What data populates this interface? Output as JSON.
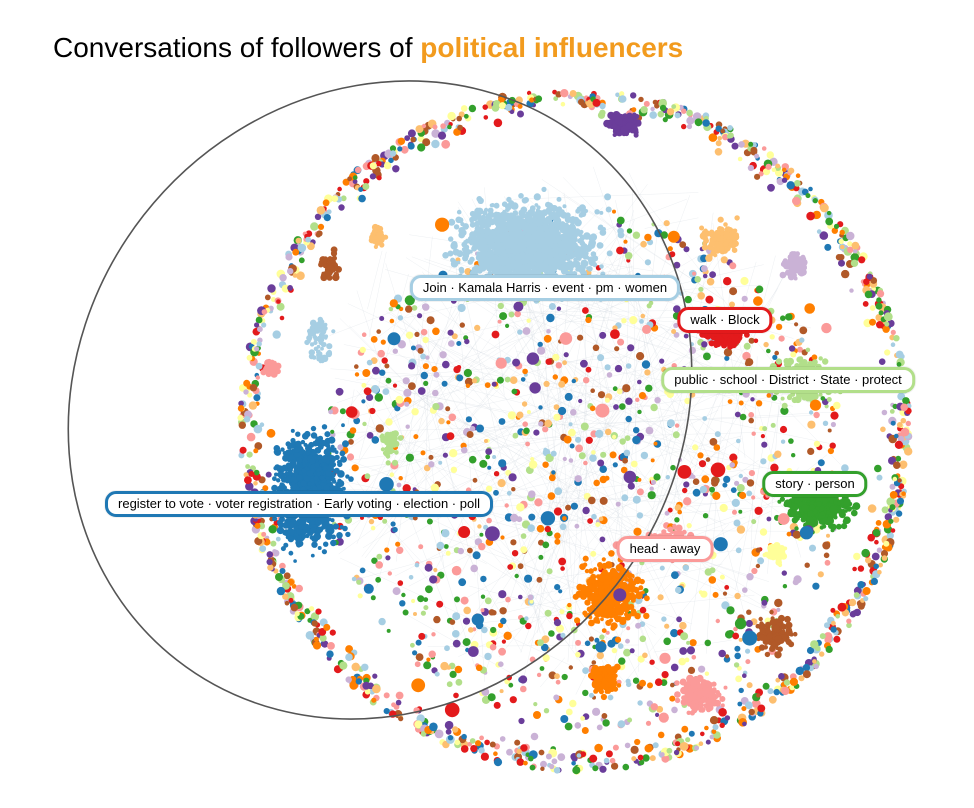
{
  "title": {
    "prefix": "Conversations of followers of ",
    "highlight": "political influencers",
    "highlight_color": "#F29B1E"
  },
  "palette": {
    "light_blue": "#A6CEE3",
    "dark_blue": "#1F78B4",
    "light_green": "#B2DF8A",
    "green": "#33A02C",
    "pink": "#FB9A99",
    "red": "#E31A1C",
    "light_orange": "#FDBF6F",
    "orange": "#FF7F00",
    "lavender": "#CAB2D6",
    "purple": "#6A3D9A",
    "yellow": "#FFFF99",
    "brown": "#B15928"
  },
  "clusters": [
    {
      "id": "light-blue",
      "label": "Join · Kamala Harris · event · pm · women",
      "color": "#A6CEE3"
    },
    {
      "id": "red",
      "label": "walk · Block",
      "color": "#E31A1C"
    },
    {
      "id": "light-green",
      "label": "public · school · District · State · protect",
      "color": "#B2DF8A"
    },
    {
      "id": "green",
      "label": "story · person",
      "color": "#33A02C"
    },
    {
      "id": "dark-blue",
      "label": "register to vote · voter registration · Early voting · election · poll",
      "color": "#1F78B4"
    },
    {
      "id": "pink",
      "label": "head · away",
      "color": "#FB9A99"
    }
  ],
  "highlight_ellipse": {
    "stroke": "#555555",
    "description": ""
  }
}
